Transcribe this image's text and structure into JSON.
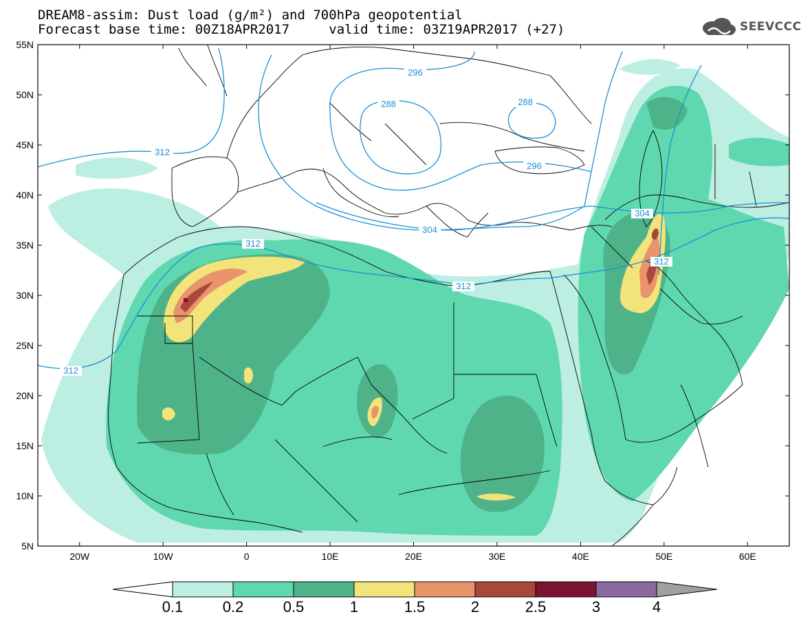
{
  "title": {
    "line1": "DREAM8-assim: Dust load (g/m²) and 700hPa geopotential",
    "line2_left": "Forecast base time: 00Z18APR2017",
    "line2_right": "valid time: 03Z19APR2017 (+27)"
  },
  "logo": {
    "text": "SEEVCCC",
    "icon": "cloud-icon"
  },
  "axes": {
    "lat_labels": [
      "55N",
      "50N",
      "45N",
      "40N",
      "35N",
      "30N",
      "25N",
      "20N",
      "15N",
      "10N",
      "5N"
    ],
    "lat_values": [
      55,
      50,
      45,
      40,
      35,
      30,
      25,
      20,
      15,
      10,
      5
    ],
    "lon_labels": [
      "20W",
      "10W",
      "0",
      "10E",
      "20E",
      "30E",
      "40E",
      "50E",
      "60E"
    ],
    "lon_values": [
      -20,
      -10,
      0,
      10,
      20,
      30,
      40,
      50,
      60
    ],
    "lon_range": [
      -25,
      65
    ],
    "lat_range": [
      5,
      55
    ]
  },
  "contour_labels": [
    "296",
    "288",
    "288",
    "312",
    "296",
    "304",
    "304",
    "312",
    "312",
    "312",
    "312"
  ],
  "colorbar": {
    "labels": [
      "0.1",
      "0.2",
      "0.5",
      "1",
      "1.5",
      "2",
      "2.5",
      "3",
      "4"
    ],
    "colors": [
      "#bdeee2",
      "#5fd8b0",
      "#4fb38a",
      "#f2e37a",
      "#e9946a",
      "#a8483a",
      "#7c1330",
      "#8a6aa0",
      "#a0a0a0"
    ],
    "left_arrow_color": "#ffffff",
    "right_arrow_color": "#a0a0a0"
  },
  "colors": {
    "contour": "#1a8fd6",
    "border": "#000000",
    "c01": "#bdeee2",
    "c02": "#5fd8b0",
    "c05": "#4fb38a",
    "c1": "#f2e37a",
    "c15": "#e9946a",
    "c2": "#a8483a",
    "c25": "#7c1330"
  }
}
